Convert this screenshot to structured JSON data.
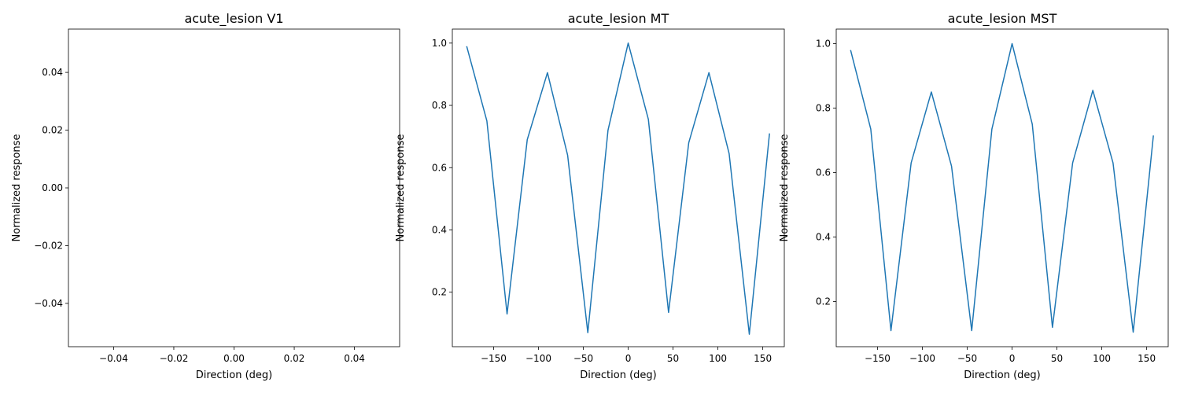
{
  "figure": {
    "background": "#ffffff",
    "line_color": "#1f77b4"
  },
  "chart_data": [
    {
      "type": "line",
      "title": "acute_lesion V1",
      "xlabel": "Direction (deg)",
      "ylabel": "Normalized response",
      "xlim": [
        -0.055,
        0.055
      ],
      "ylim": [
        -0.055,
        0.055
      ],
      "xticks": [
        -0.04,
        -0.02,
        0.0,
        0.02,
        0.04
      ],
      "xtick_labels": [
        "−0.04",
        "−0.02",
        "0.00",
        "0.02",
        "0.04"
      ],
      "yticks": [
        -0.04,
        -0.02,
        0.0,
        0.02,
        0.04
      ],
      "ytick_labels": [
        "−0.04",
        "−0.02",
        "0.00",
        "0.02",
        "0.04"
      ],
      "grid": false,
      "series": [
        {
          "x": [],
          "y": []
        }
      ]
    },
    {
      "type": "line",
      "title": "acute_lesion MT",
      "xlabel": "Direction (deg)",
      "ylabel": "Normalized response",
      "xlim": [
        -196,
        174
      ],
      "ylim": [
        0.025,
        1.045
      ],
      "xticks": [
        -150,
        -100,
        -50,
        0,
        50,
        100,
        150
      ],
      "xtick_labels": [
        "−150",
        "−100",
        "−50",
        "0",
        "50",
        "100",
        "150"
      ],
      "yticks": [
        0.2,
        0.4,
        0.6,
        0.8,
        1.0
      ],
      "ytick_labels": [
        "0.2",
        "0.4",
        "0.6",
        "0.8",
        "1.0"
      ],
      "grid": false,
      "series": [
        {
          "x": [
            -180,
            -157.5,
            -135,
            -112.5,
            -90,
            -67.5,
            -45,
            -22.5,
            0,
            22.5,
            45,
            67.5,
            90,
            112.5,
            135,
            157.5
          ],
          "y": [
            0.99,
            0.75,
            0.13,
            0.69,
            0.905,
            0.64,
            0.07,
            0.72,
            1.0,
            0.755,
            0.135,
            0.68,
            0.905,
            0.645,
            0.065,
            0.71
          ]
        }
      ]
    },
    {
      "type": "line",
      "title": "acute_lesion MST",
      "xlabel": "Direction (deg)",
      "ylabel": "Normalized response",
      "xlim": [
        -196,
        174
      ],
      "ylim": [
        0.06,
        1.045
      ],
      "xticks": [
        -150,
        -100,
        -50,
        0,
        50,
        100,
        150
      ],
      "xtick_labels": [
        "−150",
        "−100",
        "−50",
        "0",
        "50",
        "100",
        "150"
      ],
      "yticks": [
        0.2,
        0.4,
        0.6,
        0.8,
        1.0
      ],
      "ytick_labels": [
        "0.2",
        "0.4",
        "0.6",
        "0.8",
        "1.0"
      ],
      "grid": false,
      "series": [
        {
          "x": [
            -180,
            -157.5,
            -135,
            -112.5,
            -90,
            -67.5,
            -45,
            -22.5,
            0,
            22.5,
            45,
            67.5,
            90,
            112.5,
            135,
            157.5
          ],
          "y": [
            0.98,
            0.735,
            0.11,
            0.63,
            0.85,
            0.62,
            0.11,
            0.735,
            1.0,
            0.75,
            0.12,
            0.63,
            0.855,
            0.63,
            0.105,
            0.715
          ]
        }
      ]
    }
  ]
}
